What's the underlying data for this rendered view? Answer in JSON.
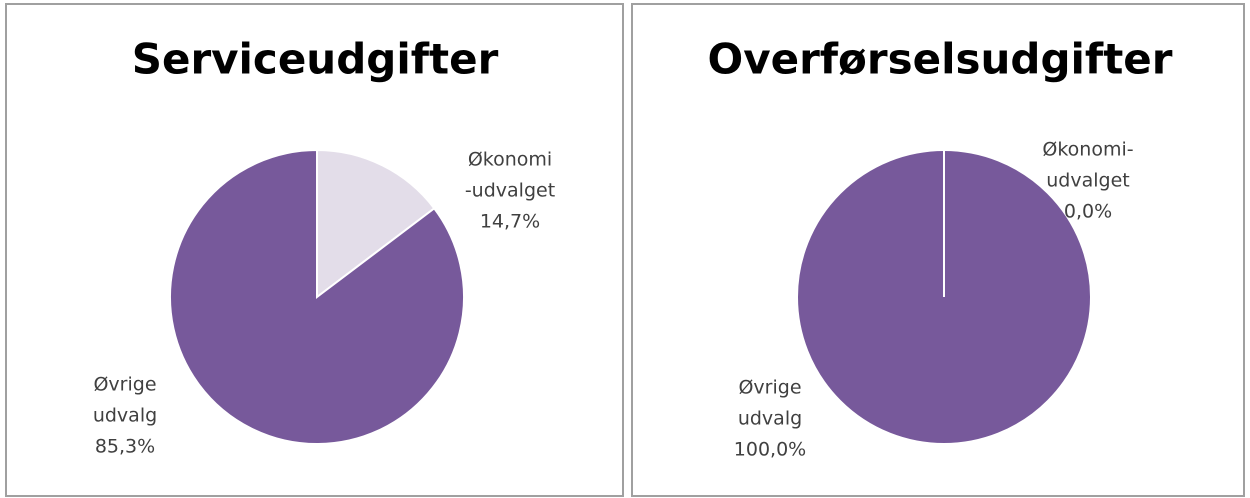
{
  "chart_data": [
    {
      "type": "pie",
      "title": "Serviceudgifter",
      "categories": [
        [
          "Økonomi",
          "-udvalget"
        ],
        [
          "Øvrige",
          "udvalg"
        ]
      ],
      "values": [
        14.7,
        85.3
      ],
      "value_labels": [
        "14,7%",
        "85,3%"
      ],
      "colors": [
        "#e3dde9",
        "#77599b"
      ]
    },
    {
      "type": "pie",
      "title": "Overførselsudgifter",
      "categories": [
        [
          "Økonomi-",
          "udvalget"
        ],
        [
          "Øvrige",
          "udvalg"
        ]
      ],
      "values": [
        0.0,
        100.0
      ],
      "value_labels": [
        "0,0%",
        "100,0%"
      ],
      "colors": [
        "#e3dde9",
        "#77599b"
      ]
    }
  ]
}
